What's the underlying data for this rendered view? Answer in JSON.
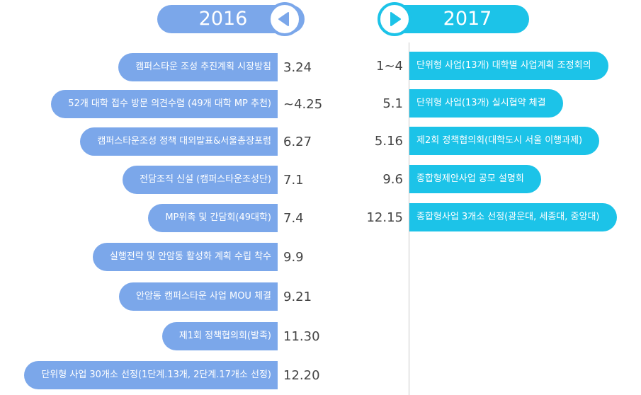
{
  "colors": {
    "left_accent": "#7ba7ea",
    "right_accent": "#1cc3e8",
    "date_text": "#444444"
  },
  "year_2016": {
    "label": "2016",
    "icon": "triangle-left-icon"
  },
  "year_2017": {
    "label": "2017",
    "icon": "triangle-right-icon"
  },
  "events_2016": [
    {
      "text": "캠퍼스타운 조성 추진계획 시장방침",
      "date": "3.24"
    },
    {
      "text": "52개 대학 접수 방문 의견수렴 (49개 대학 MP 추천)",
      "date": "~4.25"
    },
    {
      "text": "캠퍼스타운조성 정책 대외발표&서울총장포럼",
      "date": "6.27"
    },
    {
      "text": "전담조직 신설 (캠퍼스타운조성단)",
      "date": "7.1"
    },
    {
      "text": "MP위촉 및 간담회(49대학)",
      "date": "7.4"
    },
    {
      "text": "실행전략 및 안암동 활성화 계획 수립 착수",
      "date": "9.9"
    },
    {
      "text": "안암동 캠퍼스타운 사업 MOU 체결",
      "date": "9.21"
    },
    {
      "text": "제1회 정책협의회(발족)",
      "date": "11.30"
    },
    {
      "text": "단위형 사업 30개소 선정(1단계.13개, 2단계.17개소 선정)",
      "date": "12.20"
    }
  ],
  "events_2017": [
    {
      "date": "1~4",
      "text": "단위형 사업(13개) 대학별 사업계획 조정회의"
    },
    {
      "date": "5.1",
      "text": "단위형 사업(13개) 실시협약 체결"
    },
    {
      "date": "5.16",
      "text": "제2회 정책협의회(대학도시 서울 이행과제)"
    },
    {
      "date": "9.6",
      "text": "종합형제안사업 공모 설명회"
    },
    {
      "date": "12.15",
      "text": "종합형사업 3개소 선정(광운대, 세종대, 중앙대)"
    }
  ]
}
